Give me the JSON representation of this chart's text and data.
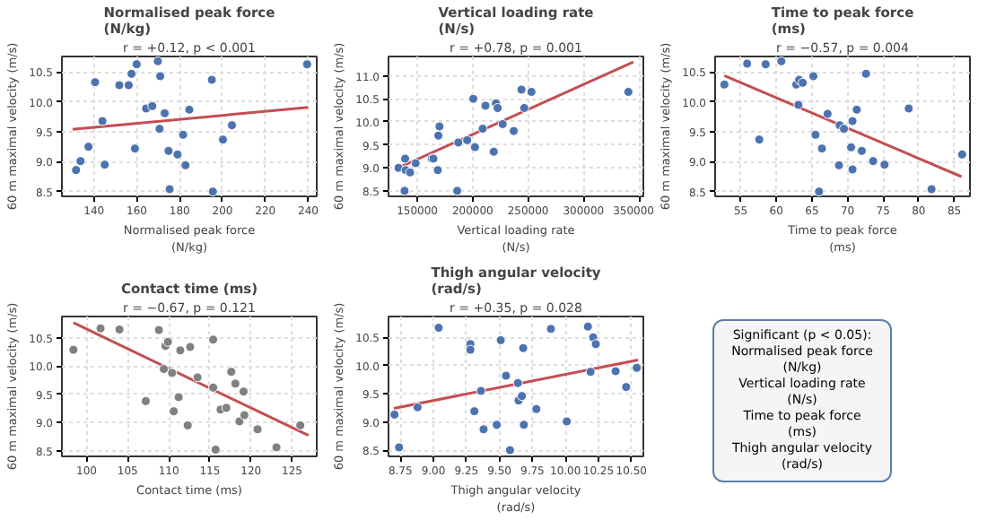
{
  "chart_data": [
    {
      "type": "scatter",
      "title": "Normalised peak force\n(N/kg)",
      "subtitle": "r = +0.12, p < 0.001",
      "xlabel": "Normalised peak force\n(N/kg)",
      "ylabel": "60 m maximal velocity (m/s)",
      "xlim": [
        125,
        244
      ],
      "ylim": [
        8.42,
        10.76
      ],
      "xticks": [
        140,
        160,
        180,
        200,
        220,
        240
      ],
      "yticks": [
        8.5,
        {
          "value": 9,
          "label": "9.0"
        },
        9.5,
        {
          "value": 10,
          "label": "10.0"
        },
        10.5
      ],
      "grid": true,
      "series": [
        {
          "color": "#4c72b0",
          "marker": "circle",
          "x": [
            131.6,
            133.7,
            137.4,
            140.5,
            143.9,
            145,
            151.8,
            156.2,
            157.5,
            159.1,
            159.9,
            164.3,
            167.2,
            169.8,
            170.6,
            170.9,
            173,
            174.8,
            175.3,
            179,
            181.6,
            182.7,
            184.5,
            195,
            195.5,
            200.2,
            204.4,
            239.5
          ],
          "values": [
            8.86,
            9.01,
            9.25,
            10.33,
            9.68,
            8.95,
            10.28,
            10.28,
            10.47,
            9.22,
            10.63,
            9.89,
            9.93,
            10.68,
            9.55,
            10.43,
            9.81,
            9.18,
            8.54,
            9.12,
            9.45,
            8.94,
            9.87,
            10.37,
            8.5,
            9.37,
            9.61,
            10.63
          ]
        },
        {
          "type": "line",
          "color": "#c44e52",
          "x": [
            130,
            240
          ],
          "values": [
            9.54,
            9.91
          ]
        }
      ]
    },
    {
      "type": "scatter",
      "title": "Vertical loading rate\n(N/s)",
      "subtitle": "r = +0.78, p = 0.001",
      "xlabel": "Vertical loading rate\n(N/s)",
      "ylabel": "60 m maximal velocity (m/s)",
      "xlim": [
        124000,
        354000
      ],
      "ylim": [
        8.38,
        11.42
      ],
      "xticks": [
        150000,
        200000,
        250000,
        300000,
        350000
      ],
      "yticks": [
        8.5,
        {
          "value": 9,
          "label": "9.0"
        },
        9.5,
        {
          "value": 10,
          "label": "10.0"
        },
        10.5,
        {
          "value": 11,
          "label": "11.0"
        }
      ],
      "grid": true,
      "series": [
        {
          "color": "#4c72b0",
          "marker": "circle",
          "x": [
            133000,
            139000,
            139500,
            138500,
            143500,
            148500,
            163000,
            164500,
            168500,
            169000,
            170000,
            187000,
            186000,
            195000,
            200500,
            202000,
            209000,
            211500,
            219000,
            221000,
            222500,
            227000,
            237000,
            244000,
            246500,
            253000,
            340500
          ],
          "values": [
            9.0,
            9.2,
            8.95,
            8.5,
            8.9,
            9.1,
            9.2,
            9.2,
            8.95,
            9.7,
            9.9,
            9.55,
            8.5,
            9.6,
            10.5,
            9.45,
            9.85,
            10.35,
            9.35,
            10.4,
            10.3,
            9.95,
            9.8,
            10.7,
            10.3,
            10.65,
            10.65
          ]
        },
        {
          "type": "line",
          "color": "#c44e52",
          "x": [
            133000,
            345000
          ],
          "values": [
            9.0,
            11.3
          ]
        }
      ]
    },
    {
      "type": "scatter",
      "title": "Time to peak force\n(ms)",
      "subtitle": "r = −0.57, p = 0.004",
      "xlabel": "Time to peak force\n(ms)",
      "ylabel": "60 m maximal velocity (m/s)",
      "xlim": [
        51.4,
        87.2
      ],
      "ylim": [
        8.42,
        10.76
      ],
      "xticks": [
        55,
        60,
        65,
        70,
        75,
        80,
        85
      ],
      "yticks": [
        8.5,
        {
          "value": 9,
          "label": "9.0"
        },
        9.5,
        {
          "value": 10,
          "label": "10.0"
        },
        10.5
      ],
      "grid": true,
      "series": [
        {
          "color": "#4c72b0",
          "marker": "circle",
          "x": [
            52.7,
            55.9,
            57.6,
            58.5,
            60.7,
            62.8,
            63.1,
            63.2,
            63.7,
            65.2,
            65.5,
            66,
            66.4,
            67.2,
            68.9,
            68.8,
            69.5,
            70.5,
            70.7,
            70.7,
            71.3,
            72,
            72.6,
            73.6,
            75.2,
            78.6,
            81.8,
            86.1
          ],
          "values": [
            10.29,
            10.64,
            9.37,
            10.63,
            10.68,
            10.29,
            9.95,
            10.37,
            10.32,
            10.43,
            9.45,
            8.5,
            9.22,
            9.8,
            9.61,
            8.94,
            9.55,
            9.24,
            9.68,
            8.87,
            9.87,
            9.18,
            10.47,
            9.01,
            8.95,
            9.89,
            8.54,
            9.12
          ]
        },
        {
          "type": "line",
          "color": "#c44e52",
          "x": [
            52.7,
            86
          ],
          "values": [
            10.44,
            8.75
          ]
        }
      ]
    },
    {
      "type": "scatter",
      "title": "Contact time (ms)",
      "subtitle": "r = −0.67, p = 0.121",
      "xlabel": "Contact time (ms)",
      "ylabel": "60 m maximal velocity (m/s)",
      "xlim": [
        97,
        128
      ],
      "ylim": [
        8.4,
        10.88
      ],
      "xticks": [
        100,
        105,
        110,
        115,
        120,
        125
      ],
      "yticks": [
        8.5,
        {
          "value": 9,
          "label": "9.0"
        },
        9.5,
        {
          "value": 10,
          "label": "10.0"
        },
        10.5
      ],
      "grid": true,
      "series": [
        {
          "color": "#808080",
          "marker": "circle",
          "x": [
            98.4,
            101.7,
            104,
            108.8,
            107.2,
            109.4,
            109.6,
            109.9,
            110.4,
            110.6,
            111.2,
            111.4,
            112.3,
            112.6,
            113.5,
            115.4,
            115.4,
            115.7,
            116.3,
            117,
            117.6,
            118.1,
            118.6,
            119.1,
            119.2,
            120.8,
            123.1,
            126
          ],
          "values": [
            10.29,
            10.67,
            10.65,
            10.64,
            9.38,
            9.95,
            10.36,
            10.43,
            9.88,
            9.2,
            9.45,
            10.28,
            8.95,
            10.34,
            9.8,
            10.47,
            9.62,
            8.52,
            9.23,
            9.26,
            9.9,
            9.69,
            9.02,
            9.55,
            9.13,
            8.88,
            8.56,
            8.95
          ]
        },
        {
          "type": "line",
          "color": "#c44e52",
          "x": [
            98.4,
            127
          ],
          "values": [
            10.77,
            8.77
          ]
        }
      ]
    },
    {
      "type": "scatter",
      "title": "Thigh angular velocity\n(rad/s)",
      "subtitle": "r = +0.35, p = 0.028",
      "xlabel": "Thigh angular velocity\n(rad/s)",
      "ylabel": "60 m maximal velocity (m/s)",
      "xlim": [
        8.66,
        10.59
      ],
      "ylim": [
        8.39,
        10.87
      ],
      "xticks": [
        8.75,
        {
          "value": 9,
          "label": "9.00"
        },
        9.25,
        {
          "value": 9.5,
          "label": "9.50"
        },
        9.75,
        {
          "value": 10,
          "label": "10.00"
        },
        10.25,
        {
          "value": 10.5,
          "label": "10.50"
        }
      ],
      "yticks": [
        8.5,
        {
          "value": 9,
          "label": "9.0"
        },
        9.5,
        {
          "value": 10,
          "label": "10.0"
        },
        10.5
      ],
      "grid": true,
      "series": [
        {
          "color": "#4c72b0",
          "marker": "circle",
          "x": [
            8.705,
            8.74,
            8.88,
            9.04,
            9.28,
            9.28,
            9.31,
            9.38,
            9.36,
            9.48,
            9.51,
            9.55,
            9.58,
            9.64,
            9.645,
            9.67,
            9.68,
            9.685,
            9.78,
            9.89,
            10.01,
            10.17,
            10.21,
            10.23,
            10.19,
            10.38,
            10.46,
            10.54
          ],
          "values": [
            9.13,
            8.55,
            9.26,
            10.67,
            10.38,
            10.28,
            9.19,
            8.87,
            9.55,
            8.95,
            10.45,
            9.82,
            8.5,
            9.69,
            9.38,
            9.46,
            10.31,
            8.95,
            9.23,
            10.65,
            9.01,
            10.69,
            10.5,
            10.38,
            9.89,
            9.9,
            9.62,
            9.96
          ]
        },
        {
          "type": "line",
          "color": "#c44e52",
          "x": [
            8.7,
            10.55
          ],
          "values": [
            9.24,
            10.1
          ]
        }
      ]
    },
    {
      "type": "other",
      "annotations": [
        "Significant (p < 0.05):",
        "Normalised peak force\n(N/kg)",
        "Vertical loading rate\n(N/s)",
        "Time to peak force\n(ms)",
        "Thigh angular velocity\n(rad/s)"
      ]
    }
  ]
}
